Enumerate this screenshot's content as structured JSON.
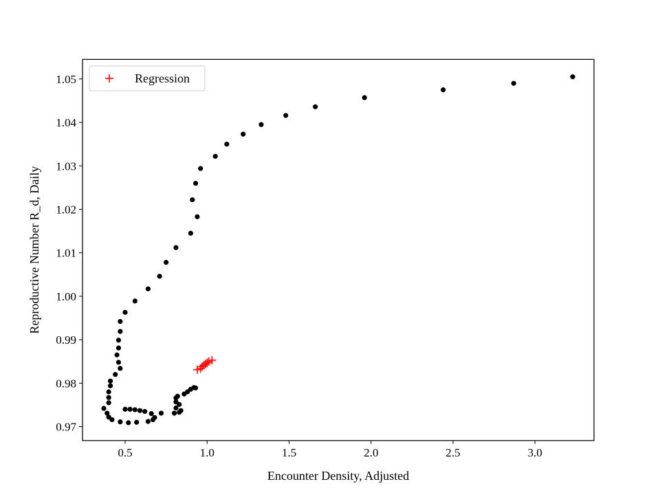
{
  "chart_data": {
    "type": "scatter",
    "title": "",
    "xlabel": "Encounter Density, Adjusted",
    "ylabel": "Reproductive Number R_d, Daily",
    "xlim": [
      0.24,
      3.36
    ],
    "ylim": [
      0.9668,
      1.0545
    ],
    "xticks": [
      0.5,
      1.0,
      1.5,
      2.0,
      2.5,
      3.0
    ],
    "xtick_labels": [
      "0.5",
      "1.0",
      "1.5",
      "2.0",
      "2.5",
      "3.0"
    ],
    "yticks": [
      0.97,
      0.98,
      0.99,
      1.0,
      1.01,
      1.02,
      1.03,
      1.04,
      1.05
    ],
    "ytick_labels": [
      "0.97",
      "0.98",
      "0.99",
      "1.00",
      "1.01",
      "1.02",
      "1.03",
      "1.04",
      "1.05"
    ],
    "grid": false,
    "legend_position": "top-left",
    "colors": {
      "observed": "#000000",
      "regression": "#ff0000",
      "axes": "#000000"
    },
    "series": [
      {
        "marker": "dot",
        "color": "#000000",
        "points": [
          [
            3.23,
            1.0505
          ],
          [
            2.87,
            1.049
          ],
          [
            2.44,
            1.0475
          ],
          [
            1.96,
            1.0457
          ],
          [
            1.66,
            1.0436
          ],
          [
            1.48,
            1.0416
          ],
          [
            1.33,
            1.0395
          ],
          [
            1.22,
            1.0373
          ],
          [
            1.12,
            1.035
          ],
          [
            1.05,
            1.0322
          ],
          [
            0.96,
            1.0294
          ],
          [
            0.93,
            1.026
          ],
          [
            0.91,
            1.0222
          ],
          [
            0.94,
            1.0183
          ],
          [
            0.9,
            1.0145
          ],
          [
            0.81,
            1.0112
          ],
          [
            0.75,
            1.0078
          ],
          [
            0.71,
            1.0046
          ],
          [
            0.64,
            1.0017
          ],
          [
            0.56,
            0.9989
          ],
          [
            0.5,
            0.9963
          ],
          [
            0.47,
            0.9942
          ],
          [
            0.47,
            0.9919
          ],
          [
            0.46,
            0.9899
          ],
          [
            0.46,
            0.9881
          ],
          [
            0.45,
            0.9865
          ],
          [
            0.46,
            0.9848
          ],
          [
            0.47,
            0.9834
          ],
          [
            0.44,
            0.982
          ],
          [
            0.41,
            0.9805
          ],
          [
            0.41,
            0.9794
          ],
          [
            0.4,
            0.978
          ],
          [
            0.4,
            0.9767
          ],
          [
            0.4,
            0.9755
          ],
          [
            0.37,
            0.9742
          ],
          [
            0.39,
            0.9731
          ],
          [
            0.4,
            0.9722
          ],
          [
            0.42,
            0.9716
          ],
          [
            0.47,
            0.9711
          ],
          [
            0.52,
            0.9709
          ],
          [
            0.57,
            0.971
          ],
          [
            0.64,
            0.9712
          ],
          [
            0.67,
            0.9716
          ],
          [
            0.68,
            0.9721
          ],
          [
            0.66,
            0.973
          ],
          [
            0.62,
            0.9735
          ],
          [
            0.59,
            0.9737
          ],
          [
            0.56,
            0.9739
          ],
          [
            0.53,
            0.974
          ],
          [
            0.5,
            0.974
          ],
          [
            0.72,
            0.9731
          ],
          [
            0.8,
            0.9731
          ],
          [
            0.83,
            0.9733
          ],
          [
            0.84,
            0.9737
          ],
          [
            0.81,
            0.9743
          ],
          [
            0.83,
            0.9751
          ],
          [
            0.81,
            0.9757
          ],
          [
            0.81,
            0.9766
          ],
          [
            0.82,
            0.977
          ],
          [
            0.86,
            0.9775
          ],
          [
            0.88,
            0.978
          ],
          [
            0.9,
            0.9786
          ],
          [
            0.92,
            0.979
          ],
          [
            0.93,
            0.9789
          ]
        ]
      },
      {
        "name": "Regression",
        "marker": "plus",
        "color": "#ff0000",
        "points": [
          [
            0.94,
            0.9831
          ],
          [
            0.96,
            0.9834
          ],
          [
            0.97,
            0.9838
          ],
          [
            0.98,
            0.9841
          ],
          [
            0.99,
            0.9844
          ],
          [
            1.0,
            0.9847
          ],
          [
            1.01,
            0.985
          ],
          [
            1.03,
            0.9853
          ]
        ]
      }
    ]
  }
}
